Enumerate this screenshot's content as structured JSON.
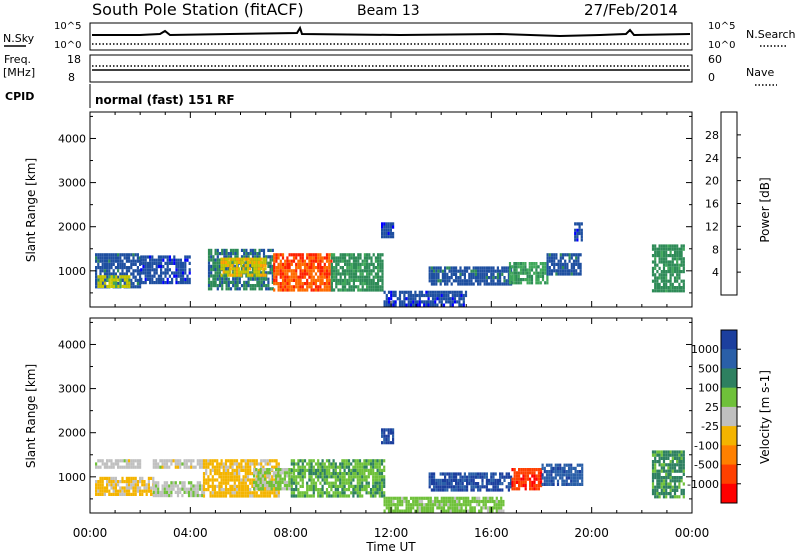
{
  "header": {
    "station": "South Pole Station (fitACF)",
    "beam": "Beam 13",
    "date": "27/Feb/2014"
  },
  "strips": {
    "nsky_label": "N.Sky",
    "nsearch_label": "N.Search",
    "noise_ticks": [
      "10^5",
      "10^0"
    ],
    "freq_label_1": "Freq.",
    "freq_label_2": "[MHz]",
    "freq_ticks": [
      "18",
      "8"
    ],
    "nave_label": "Nave",
    "nave_ticks": [
      "60",
      "0"
    ],
    "cpid_label": "CPID",
    "cpid_value": "normal (fast) 151 RF"
  },
  "axes": {
    "ylabel": "Slant Range [km]",
    "xlabel": "Time UT",
    "yticks": [
      "1000",
      "2000",
      "3000",
      "4000"
    ],
    "xticks": [
      "00:00",
      "04:00",
      "08:00",
      "12:00",
      "16:00",
      "20:00",
      "00:00"
    ]
  },
  "colorbars": {
    "power": {
      "label": "Power [dB]",
      "ticks": [
        "4",
        "8",
        "12",
        "16",
        "20",
        "24",
        "28"
      ],
      "colors": [
        "#0000ff",
        "#1e4fa0",
        "#2e8b57",
        "#3fa85a",
        "#c8c800",
        "#ffa500",
        "#ff6a00",
        "#ff2000"
      ]
    },
    "velocity": {
      "label": "Velocity [m s-1]",
      "ticks": [
        "1000",
        "500",
        "100",
        "25",
        "-25",
        "-100",
        "-500",
        "-1000"
      ],
      "colors": [
        "#1c3f9e",
        "#2a5fa8",
        "#2e8060",
        "#6fc13a",
        "#c0c0c0",
        "#f4b400",
        "#ff8000",
        "#ff4000",
        "#ff0000"
      ]
    }
  },
  "chart_data": [
    {
      "type": "heatmap",
      "name": "Power [dB]",
      "xlabel": "Time UT",
      "ylabel": "Slant Range [km]",
      "xlim": [
        "00:00",
        "24:00"
      ],
      "ylim": [
        180,
        4600
      ],
      "color_range": [
        0,
        30
      ],
      "echo_regions": [
        {
          "t_start": 0.2,
          "t_end": 2.0,
          "r_min": 650,
          "r_max": 1400,
          "value": 6
        },
        {
          "t_start": 0.3,
          "t_end": 1.6,
          "r_min": 650,
          "r_max": 900,
          "value": 16
        },
        {
          "t_start": 2.0,
          "t_end": 4.0,
          "r_min": 750,
          "r_max": 1350,
          "value": 5
        },
        {
          "t_start": 4.7,
          "t_end": 7.3,
          "r_min": 600,
          "r_max": 1500,
          "value": 8
        },
        {
          "t_start": 5.2,
          "t_end": 7.0,
          "r_min": 900,
          "r_max": 1300,
          "value": 18
        },
        {
          "t_start": 7.3,
          "t_end": 9.6,
          "r_min": 600,
          "r_max": 1400,
          "value": 26
        },
        {
          "t_start": 9.6,
          "t_end": 11.7,
          "r_min": 600,
          "r_max": 1400,
          "value": 10
        },
        {
          "t_start": 11.6,
          "t_end": 12.1,
          "r_min": 1800,
          "r_max": 2100,
          "value": 5
        },
        {
          "t_start": 11.7,
          "t_end": 15.0,
          "r_min": 250,
          "r_max": 550,
          "value": 5
        },
        {
          "t_start": 13.5,
          "t_end": 16.8,
          "r_min": 700,
          "r_max": 1100,
          "value": 6
        },
        {
          "t_start": 16.7,
          "t_end": 18.2,
          "r_min": 700,
          "r_max": 1200,
          "value": 12
        },
        {
          "t_start": 18.2,
          "t_end": 19.6,
          "r_min": 900,
          "r_max": 1400,
          "value": 6
        },
        {
          "t_start": 19.3,
          "t_end": 19.6,
          "r_min": 1700,
          "r_max": 2100,
          "value": 5
        },
        {
          "t_start": 22.4,
          "t_end": 23.7,
          "r_min": 550,
          "r_max": 1600,
          "value": 10
        }
      ]
    },
    {
      "type": "heatmap",
      "name": "Velocity [m s-1]",
      "xlabel": "Time UT",
      "ylabel": "Slant Range [km]",
      "xlim": [
        "00:00",
        "24:00"
      ],
      "ylim": [
        180,
        4600
      ],
      "color_range": [
        -1000,
        1000
      ],
      "echo_regions": [
        {
          "t_start": 0.2,
          "t_end": 2.0,
          "r_min": 1200,
          "r_max": 1400,
          "value": 0
        },
        {
          "t_start": 0.2,
          "t_end": 2.5,
          "r_min": 600,
          "r_max": 1000,
          "value": -150
        },
        {
          "t_start": 2.5,
          "t_end": 4.5,
          "r_min": 1250,
          "r_max": 1400,
          "value": 0
        },
        {
          "t_start": 2.5,
          "t_end": 4.5,
          "r_min": 600,
          "r_max": 900,
          "value": 60
        },
        {
          "t_start": 4.5,
          "t_end": 7.5,
          "r_min": 600,
          "r_max": 1400,
          "value": -200
        },
        {
          "t_start": 6.5,
          "t_end": 8.0,
          "r_min": 700,
          "r_max": 1200,
          "value": 150
        },
        {
          "t_start": 8.0,
          "t_end": 11.7,
          "r_min": 600,
          "r_max": 1400,
          "value": 300
        },
        {
          "t_start": 11.6,
          "t_end": 12.1,
          "r_min": 1800,
          "r_max": 2100,
          "value": 800
        },
        {
          "t_start": 11.7,
          "t_end": 16.5,
          "r_min": 250,
          "r_max": 550,
          "value": 200
        },
        {
          "t_start": 13.5,
          "t_end": 16.8,
          "r_min": 700,
          "r_max": 1100,
          "value": 800
        },
        {
          "t_start": 16.8,
          "t_end": 18.0,
          "r_min": 700,
          "r_max": 1200,
          "value": -700
        },
        {
          "t_start": 18.0,
          "t_end": 19.6,
          "r_min": 800,
          "r_max": 1300,
          "value": 700
        },
        {
          "t_start": 22.4,
          "t_end": 23.7,
          "r_min": 550,
          "r_max": 1600,
          "value": 400
        }
      ]
    }
  ]
}
